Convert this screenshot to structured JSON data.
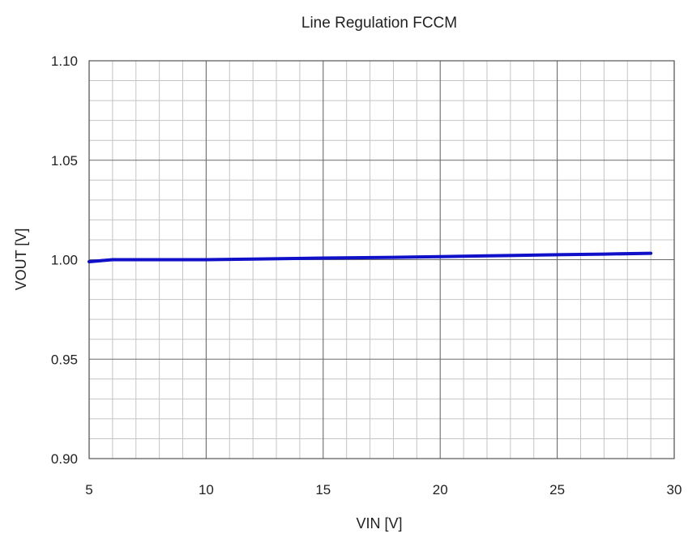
{
  "chart_data": {
    "type": "line",
    "title": "Line Regulation FCCM",
    "xlabel": "VIN [V]",
    "ylabel": "VOUT [V]",
    "xlim": [
      5,
      30
    ],
    "ylim": [
      0.9,
      1.1
    ],
    "x_ticks": [
      "5",
      "10",
      "15",
      "20",
      "25",
      "30"
    ],
    "y_ticks": [
      "0.90",
      "0.95",
      "1.00",
      "1.05",
      "1.10"
    ],
    "grid": true,
    "series": [
      {
        "color": "#1010c8",
        "x": [
          5,
          5.5,
          6,
          8,
          10,
          12,
          15,
          18,
          20,
          22,
          25,
          27,
          29
        ],
        "y": [
          0.999,
          0.9995,
          1.0,
          1.0,
          1.0,
          1.0003,
          1.0008,
          1.0012,
          1.0015,
          1.0019,
          1.0025,
          1.0028,
          1.0032
        ]
      }
    ]
  }
}
